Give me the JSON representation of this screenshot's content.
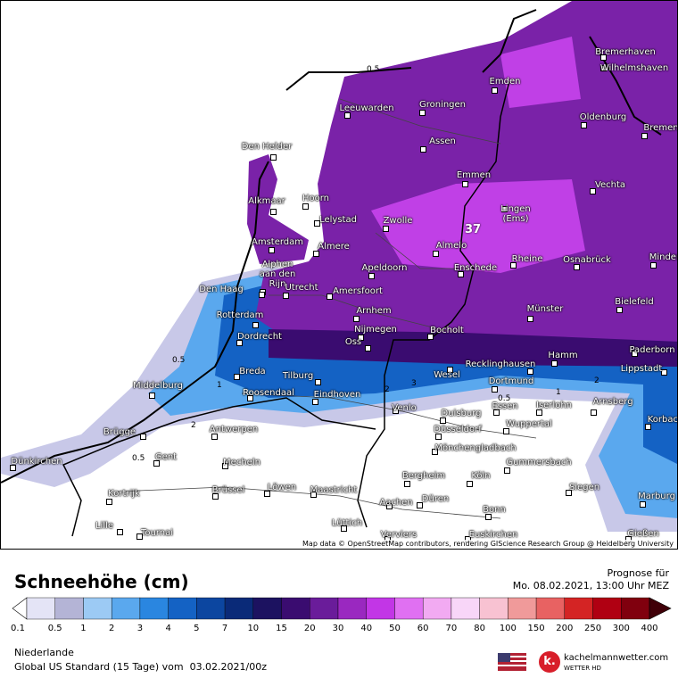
{
  "map": {
    "cities": [
      {
        "name": "Bremerhaven"
      },
      {
        "name": "Wilhelmshaven"
      },
      {
        "name": "Emden"
      },
      {
        "name": "Leeuwarden"
      },
      {
        "name": "Groningen"
      },
      {
        "name": "Oldenburg"
      },
      {
        "name": "Bremen"
      },
      {
        "name": "Den Helder"
      },
      {
        "name": "Assen"
      },
      {
        "name": "Emmen"
      },
      {
        "name": "Vechta"
      },
      {
        "name": "Alkmaar"
      },
      {
        "name": "Hoorn"
      },
      {
        "name": "Lingen (Ems)"
      },
      {
        "name": "Lelystad"
      },
      {
        "name": "Zwolle"
      },
      {
        "name": "Almere"
      },
      {
        "name": "Amsterdam"
      },
      {
        "name": "Almelo"
      },
      {
        "name": "Rheine"
      },
      {
        "name": "Osnabrück"
      },
      {
        "name": "Minden"
      },
      {
        "name": "Apeldoorn"
      },
      {
        "name": "Enschede"
      },
      {
        "name": "Alphen aan den Rijn"
      },
      {
        "name": "Den Haag"
      },
      {
        "name": "Utrecht"
      },
      {
        "name": "Amersfoort"
      },
      {
        "name": "Bielefeld"
      },
      {
        "name": "Arnhem"
      },
      {
        "name": "Münster"
      },
      {
        "name": "Rotterdam"
      },
      {
        "name": "Nijmegen"
      },
      {
        "name": "Bocholt"
      },
      {
        "name": "Dordrecht"
      },
      {
        "name": "Oss"
      },
      {
        "name": "Paderborn"
      },
      {
        "name": "Hamm"
      },
      {
        "name": "Recklinghausen"
      },
      {
        "name": "Lippstadt"
      },
      {
        "name": "Breda"
      },
      {
        "name": "Tilburg"
      },
      {
        "name": "Wesel"
      },
      {
        "name": "Middelburg"
      },
      {
        "name": "Dortmund"
      },
      {
        "name": "Roosendaal"
      },
      {
        "name": "Eindhoven"
      },
      {
        "name": "Essen"
      },
      {
        "name": "Iserlohn"
      },
      {
        "name": "Arnsberg"
      },
      {
        "name": "Venlo"
      },
      {
        "name": "Duisburg"
      },
      {
        "name": "Korbach"
      },
      {
        "name": "Brügge"
      },
      {
        "name": "Antwerpen"
      },
      {
        "name": "Wuppertal"
      },
      {
        "name": "Düsseldorf"
      },
      {
        "name": "Mönchengladbach"
      },
      {
        "name": "Dünkirchen"
      },
      {
        "name": "Gent"
      },
      {
        "name": "Mecheln"
      },
      {
        "name": "Gummersbach"
      },
      {
        "name": "Bergheim"
      },
      {
        "name": "Köln"
      },
      {
        "name": "Kortrijk"
      },
      {
        "name": "Brüssel"
      },
      {
        "name": "Löwen"
      },
      {
        "name": "Maastricht"
      },
      {
        "name": "Siegen"
      },
      {
        "name": "Marburg"
      },
      {
        "name": "Düren"
      },
      {
        "name": "Aachen"
      },
      {
        "name": "Bonn"
      },
      {
        "name": "Lille"
      },
      {
        "name": "Tournai"
      },
      {
        "name": "Lüttich"
      },
      {
        "name": "Verviers"
      },
      {
        "name": "Euskirchen"
      },
      {
        "name": "Gießen"
      }
    ],
    "max_value": 37,
    "contour_labels": [
      0.5,
      0.5,
      1,
      2,
      0.5,
      2,
      3,
      0.5,
      1,
      2
    ],
    "attribution": "Map data © OpenStreetMap contributors, rendering GIScience Research Group @ Heidelberg University"
  },
  "legend": {
    "title": "Schneehöhe (cm)",
    "forecast_label": "Prognose für",
    "forecast_time": "Mo. 08.02.2021, 13:00 Uhr MEZ",
    "scale": {
      "labels": [
        0.1,
        0.5,
        1,
        2,
        3,
        4,
        5,
        7,
        10,
        15,
        20,
        30,
        40,
        50,
        60,
        70,
        80,
        100,
        150,
        200,
        250,
        300,
        400
      ],
      "colors": [
        "#ffffff",
        "#e4e4f6",
        "#b4b4d6",
        "#9ccaf4",
        "#5aa8ee",
        "#2a86e0",
        "#1462c4",
        "#0c46a0",
        "#0a2a78",
        "#1c1260",
        "#3a0c70",
        "#6a1c9a",
        "#9a28c0",
        "#c236e6",
        "#e070f2",
        "#f2aaf2",
        "#f8d6f8",
        "#f8c2d2",
        "#f09a9a",
        "#e86262",
        "#d42424",
        "#b00012",
        "#80000e",
        "#400008"
      ]
    },
    "region": "Niederlande",
    "model": "Global US Standard (15 Tage) vom  03.02.2021/00z",
    "brand": "kachelmannwetter.com",
    "brand_sub": "WETTER HD",
    "logo_mark": "k."
  }
}
